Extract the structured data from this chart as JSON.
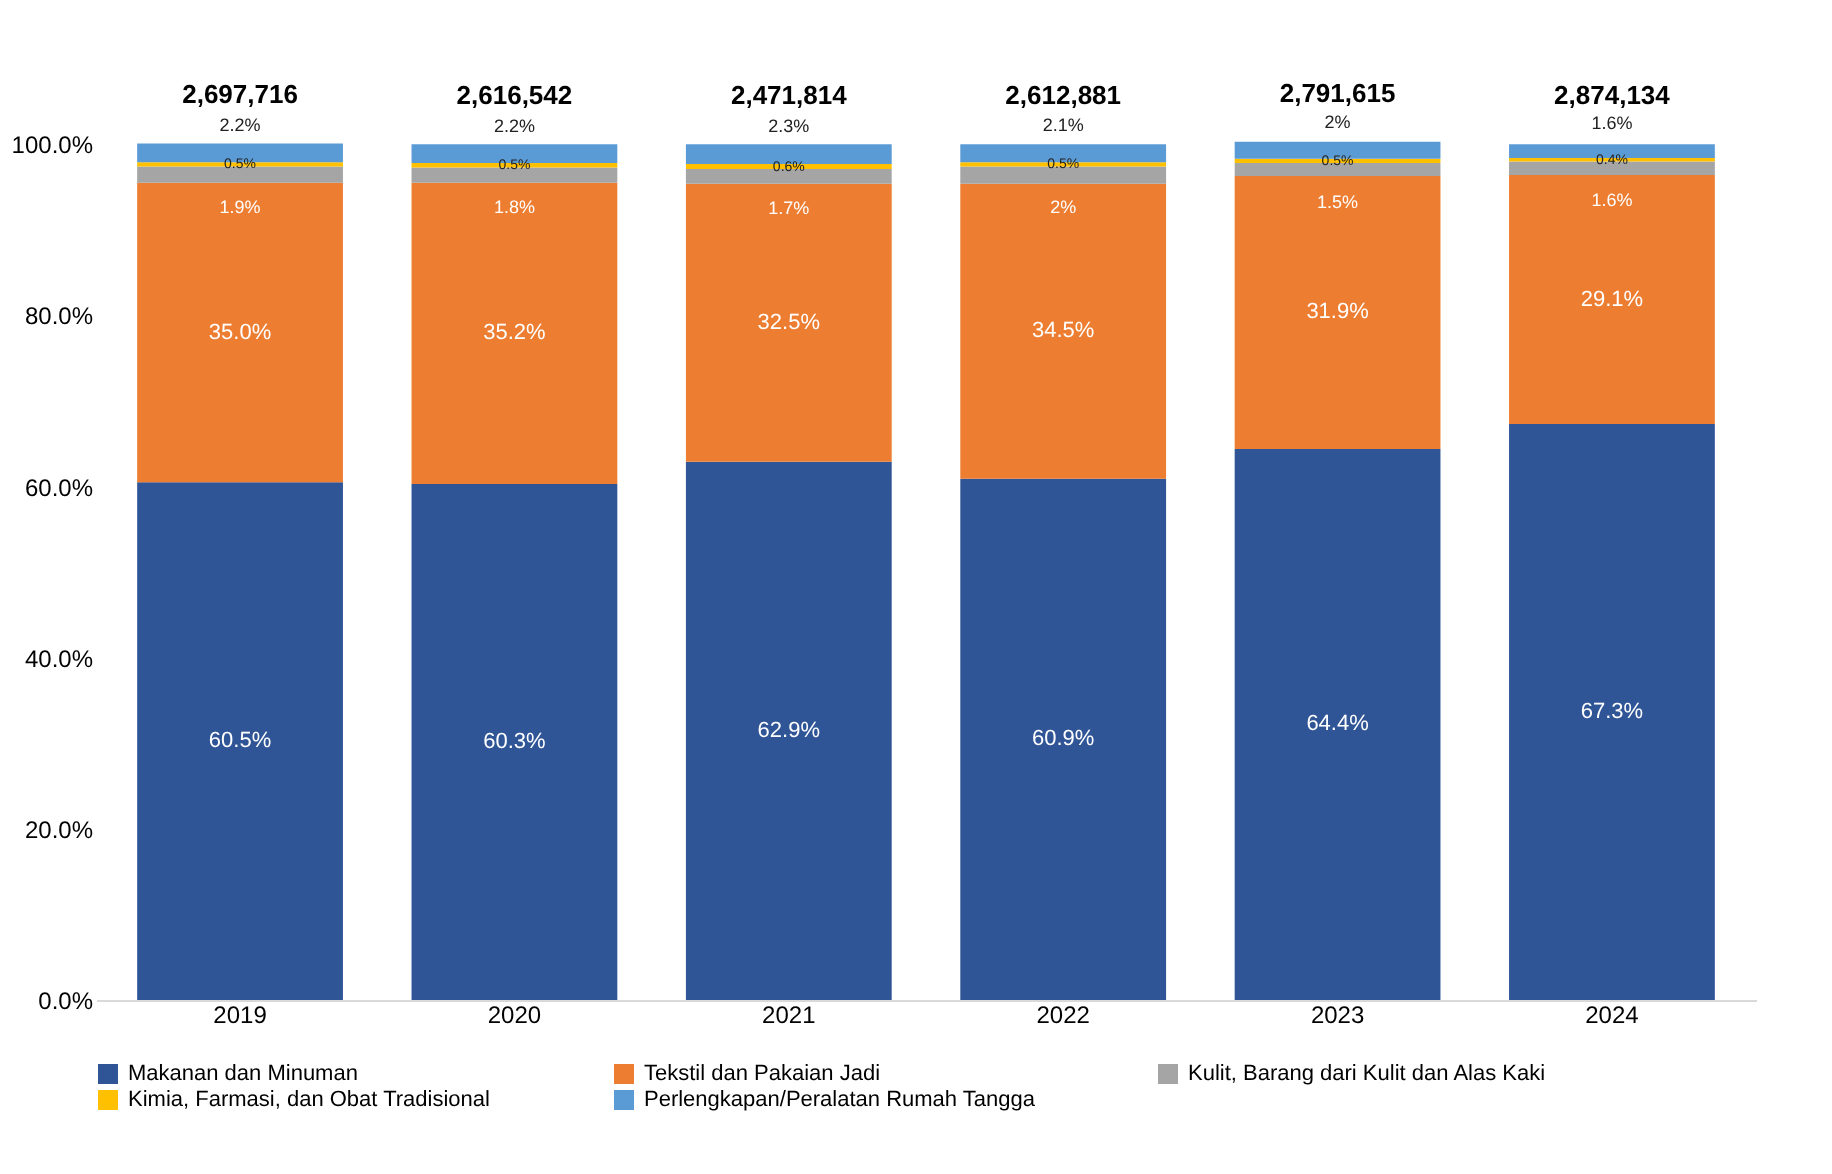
{
  "chart_data": {
    "type": "bar",
    "stacked": true,
    "categories": [
      "2019",
      "2020",
      "2021",
      "2022",
      "2023",
      "2024"
    ],
    "series": [
      {
        "name": "Makanan dan Minuman",
        "color": "#2f5597",
        "values": [
          60.5,
          60.3,
          62.9,
          60.9,
          64.4,
          67.3
        ],
        "value_labels": [
          "60.5%",
          "60.3%",
          "62.9%",
          "60.9%",
          "64.4%",
          "67.3%"
        ]
      },
      {
        "name": "Tekstil dan Pakaian Jadi",
        "color": "#ed7d31",
        "values": [
          35.0,
          35.2,
          32.5,
          34.5,
          31.9,
          29.1
        ],
        "value_labels": [
          "35.0%",
          "35.2%",
          "32.5%",
          "34.5%",
          "31.9%",
          "29.1%"
        ]
      },
      {
        "name": "Kulit, Barang dari Kulit dan Alas Kaki",
        "color": "#a5a5a5",
        "values": [
          1.9,
          1.8,
          1.7,
          2,
          1.5,
          1.6
        ],
        "value_labels": [
          "1.9%",
          "1.8%",
          "1.7%",
          "2%",
          "1.5%",
          "1.6%"
        ]
      },
      {
        "name": "Kimia, Farmasi, dan Obat Tradisional",
        "color": "#ffc000",
        "values": [
          0.5,
          0.5,
          0.6,
          0.5,
          0.5,
          0.4
        ],
        "value_labels": [
          "0.5%",
          "0.5%",
          "0.6%",
          "0.5%",
          "0.5%",
          "0.4%"
        ]
      },
      {
        "name": "Perlengkapan/Peralatan Rumah Tangga",
        "color": "#5b9bd5",
        "values": [
          2.2,
          2.2,
          2.3,
          2.1,
          2,
          1.6
        ],
        "value_labels": [
          "2.2%",
          "2.2%",
          "2.3%",
          "2.1%",
          "2%",
          "1.6%"
        ]
      }
    ],
    "annotations": [
      "2,697,716",
      "2,616,542",
      "2,471,814",
      "2,612,881",
      "2,791,615",
      "2,874,134"
    ],
    "ylim": [
      0,
      100.5
    ],
    "yticks": [
      {
        "value": 0,
        "label": "0.0%"
      },
      {
        "value": 20,
        "label": "20.0%"
      },
      {
        "value": 40,
        "label": "40.0%"
      },
      {
        "value": 60,
        "label": "60.0%"
      },
      {
        "value": 80,
        "label": "80.0%"
      },
      {
        "value": 100,
        "label": "100.0%"
      }
    ],
    "grid": false,
    "legend": "bottom"
  }
}
